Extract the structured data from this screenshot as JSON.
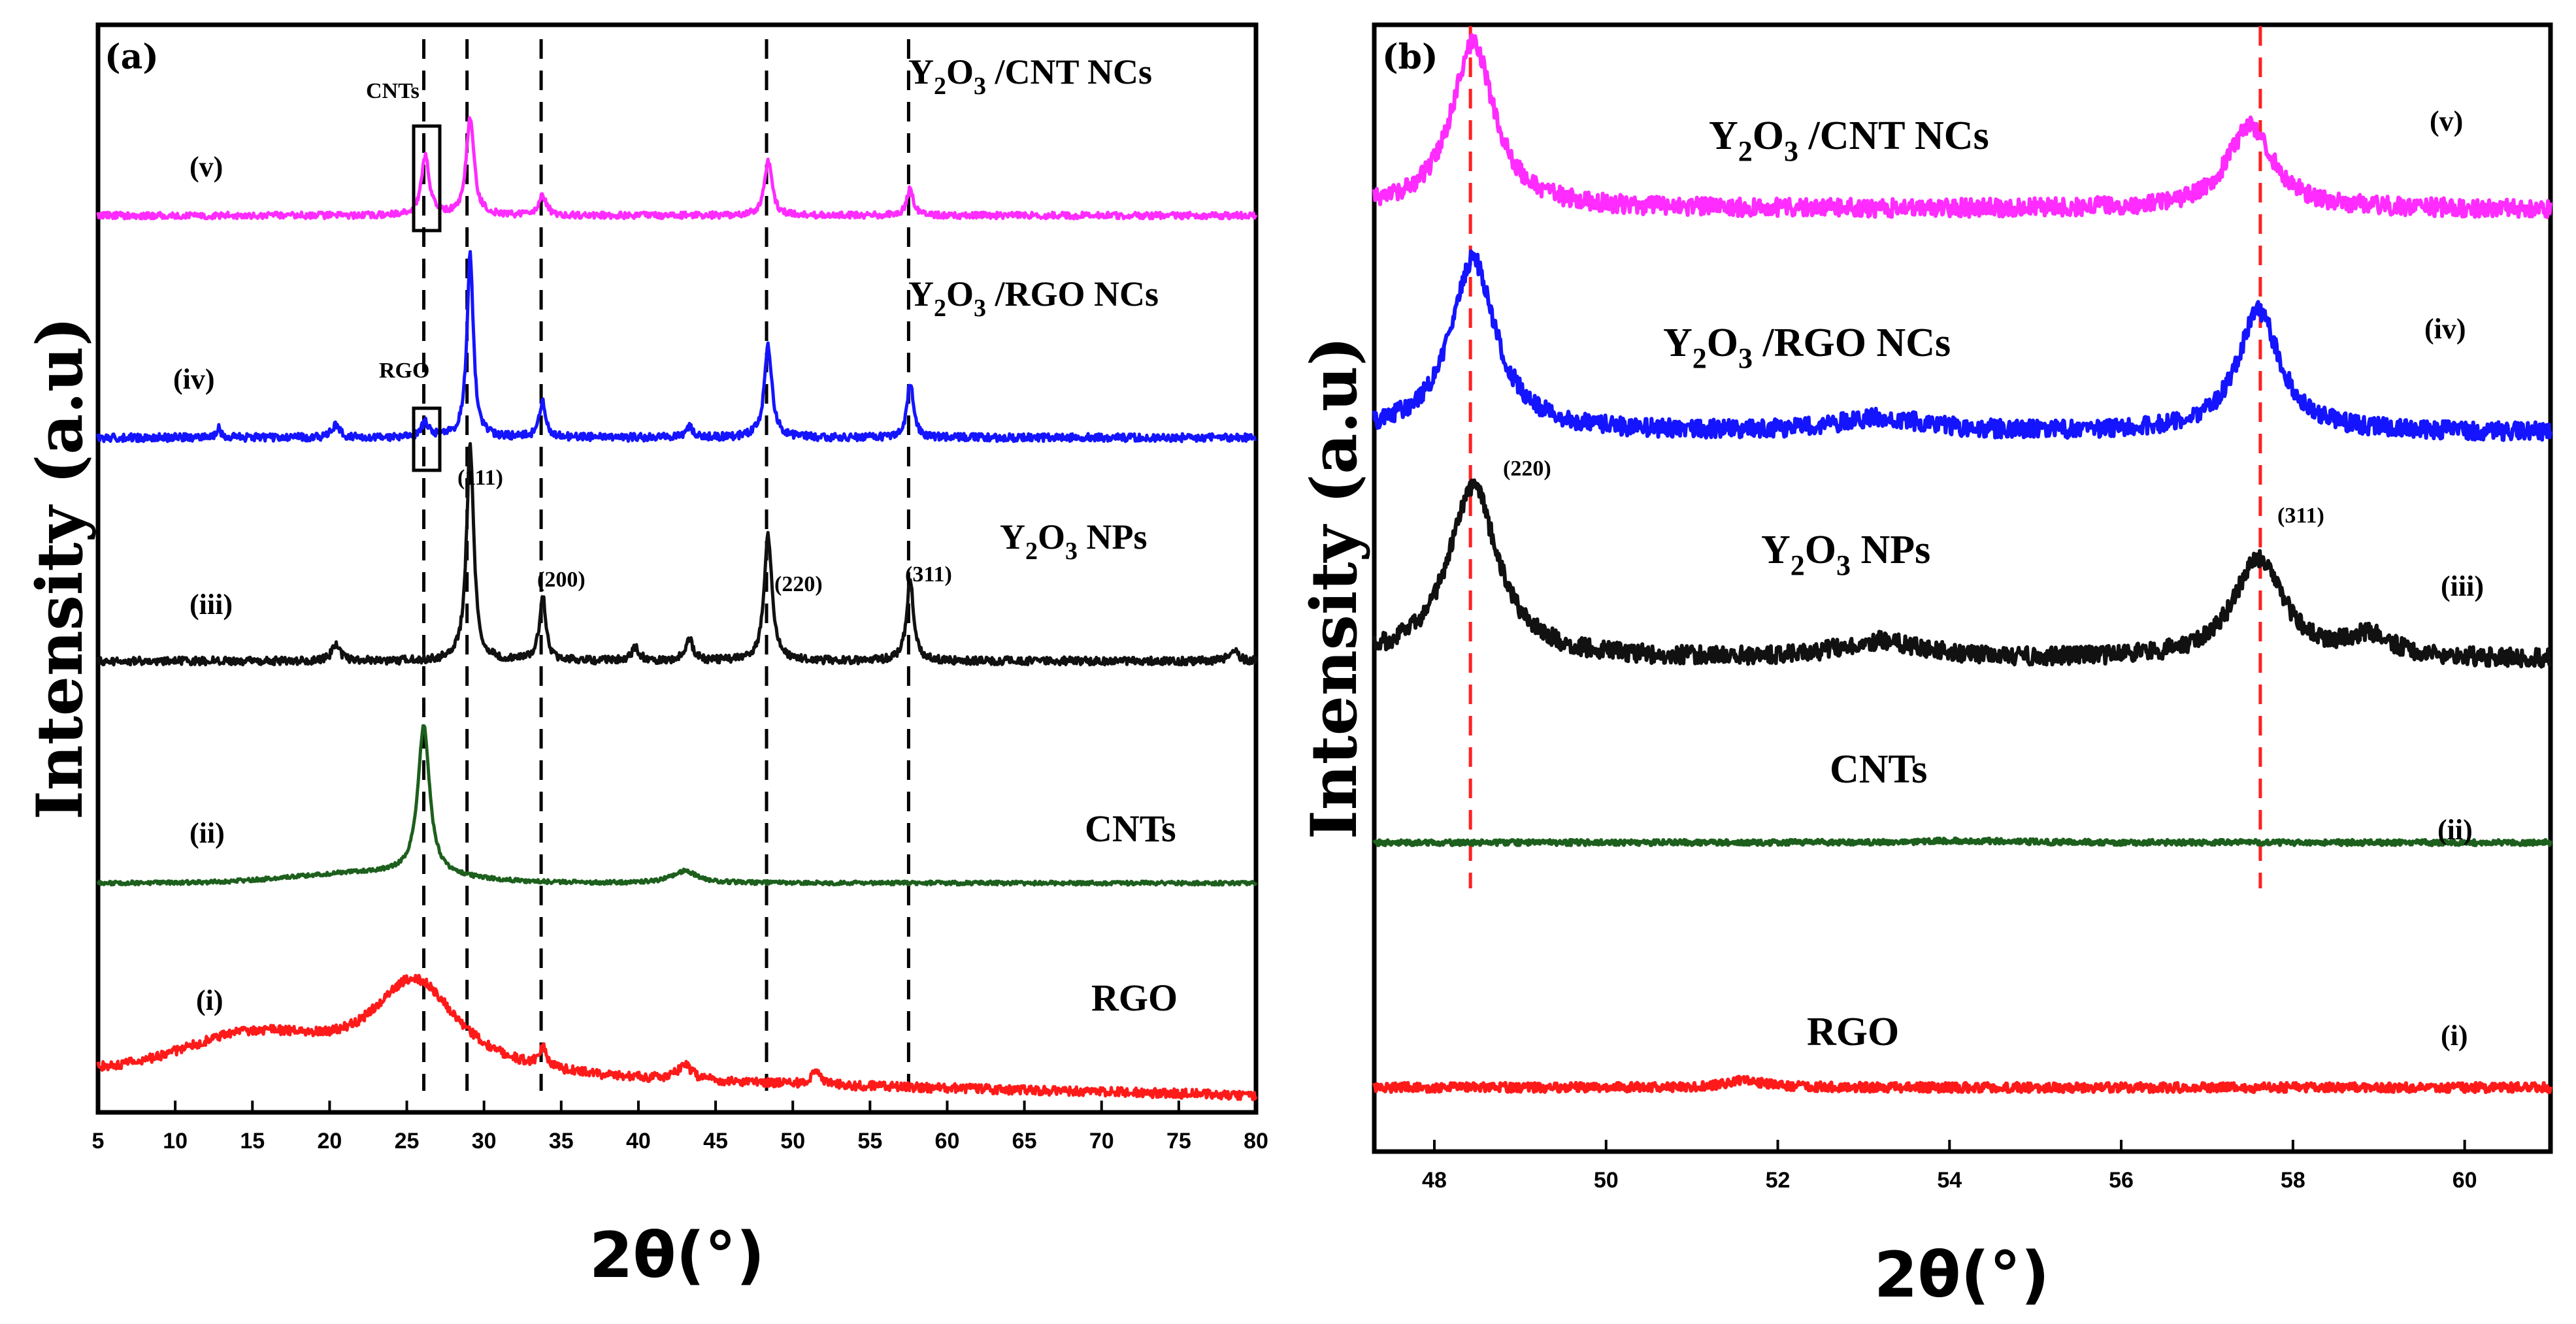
{
  "chart_data": [
    {
      "panel": "(a)",
      "type": "line",
      "xlabel": "2θ(°)",
      "ylabel": "Intensity (a.u)",
      "xlim": [
        5,
        80
      ],
      "xticks": [
        "5",
        "10",
        "15",
        "20",
        "25",
        "30",
        "35",
        "40",
        "45",
        "50",
        "55",
        "60",
        "65",
        "70",
        "75",
        "80"
      ],
      "y_ticks_shown": false,
      "series": [
        {
          "name": "RGO",
          "tag": "(i)",
          "color": "#ff1a1a",
          "peaks": [
            {
              "x": 25.5,
              "h": 1.0,
              "w": 3.5
            },
            {
              "x": 33.8,
              "h": 0.2,
              "w": 0.3
            },
            {
              "x": 43.0,
              "h": 0.15,
              "w": 0.6
            },
            {
              "x": 51.5,
              "h": 0.12,
              "w": 0.4
            }
          ]
        },
        {
          "name": "CNTs",
          "tag": "(ii)",
          "color": "#1d5f1d",
          "peaks": [
            {
              "x": 26.1,
              "h": 1.0,
              "w": 0.45
            },
            {
              "x": 43.0,
              "h": 0.08,
              "w": 1.0
            }
          ]
        },
        {
          "name": "Y2O3 NPs",
          "tag": "(iii)",
          "color": "#111111",
          "peaks": [
            {
              "x": 29.1,
              "h": 1.0,
              "w": 0.28
            },
            {
              "x": 33.8,
              "h": 0.3,
              "w": 0.25
            },
            {
              "x": 48.4,
              "h": 0.58,
              "w": 0.3
            },
            {
              "x": 57.6,
              "h": 0.37,
              "w": 0.28
            },
            {
              "x": 20.4,
              "h": 0.08,
              "w": 0.3
            },
            {
              "x": 43.3,
              "h": 0.1,
              "w": 0.3
            },
            {
              "x": 39.8,
              "h": 0.06,
              "w": 0.3
            },
            {
              "x": 78.5,
              "h": 0.06,
              "w": 0.3
            }
          ]
        },
        {
          "name": "Y2O3 /RGO NCs",
          "tag": "(iv)",
          "color": "#1414ff",
          "peaks": [
            {
              "x": 29.1,
              "h": 1.0,
              "w": 0.25
            },
            {
              "x": 33.8,
              "h": 0.2,
              "w": 0.25
            },
            {
              "x": 48.4,
              "h": 0.5,
              "w": 0.3
            },
            {
              "x": 57.6,
              "h": 0.3,
              "w": 0.25
            },
            {
              "x": 26.2,
              "h": 0.08,
              "w": 0.3
            },
            {
              "x": 20.4,
              "h": 0.07,
              "w": 0.3
            },
            {
              "x": 12.8,
              "h": 0.05,
              "w": 0.2
            },
            {
              "x": 43.3,
              "h": 0.06,
              "w": 0.3
            }
          ]
        },
        {
          "name": "Y2O3 /CNT NCs",
          "tag": "(v)",
          "color": "#ff2bff",
          "peaks": [
            {
              "x": 29.1,
              "h": 1.0,
              "w": 0.3
            },
            {
              "x": 26.2,
              "h": 0.6,
              "w": 0.3
            },
            {
              "x": 33.8,
              "h": 0.2,
              "w": 0.3
            },
            {
              "x": 48.4,
              "h": 0.55,
              "w": 0.3
            },
            {
              "x": 57.6,
              "h": 0.28,
              "w": 0.25
            }
          ]
        }
      ],
      "peak_labels": [
        "(111)",
        "(200)",
        "(220)",
        "(311)"
      ],
      "reference_lines": [
        26.1,
        28.9,
        33.7,
        48.3,
        57.5
      ],
      "box_labels": [
        "CNTs",
        "RGO"
      ]
    },
    {
      "panel": "(b)",
      "type": "line",
      "xlabel": "2θ(°)",
      "ylabel": "Intensity (a.u)",
      "xlim": [
        47.3,
        61.0
      ],
      "xticks": [
        "48",
        "50",
        "52",
        "54",
        "56",
        "58",
        "60"
      ],
      "y_ticks_shown": false,
      "series": [
        {
          "name": "RGO",
          "tag": "(i)",
          "color": "#ff1a1a",
          "peaks": [
            {
              "x": 51.6,
              "h": 0.1,
              "w": 0.3
            }
          ]
        },
        {
          "name": "CNTs",
          "tag": "(ii)",
          "color": "#1d5f1d",
          "peaks": [
            {
              "x": 54.2,
              "h": 0.05,
              "w": 0.6
            }
          ]
        },
        {
          "name": "Y2O3 NPs",
          "tag": "(iii)",
          "color": "#111111",
          "peaks": [
            {
              "x": 48.45,
              "h": 1.0,
              "w": 0.35
            },
            {
              "x": 57.6,
              "h": 0.58,
              "w": 0.35
            },
            {
              "x": 53.2,
              "h": 0.1,
              "w": 0.6
            },
            {
              "x": 58.9,
              "h": 0.12,
              "w": 0.3
            }
          ]
        },
        {
          "name": "Y2O3 /RGO NCs",
          "tag": "(iv)",
          "color": "#1414ff",
          "peaks": [
            {
              "x": 48.45,
              "h": 1.0,
              "w": 0.32
            },
            {
              "x": 57.6,
              "h": 0.7,
              "w": 0.3
            },
            {
              "x": 53.2,
              "h": 0.08,
              "w": 0.6
            }
          ]
        },
        {
          "name": "Y2O3 /CNT NCs",
          "tag": "(v)",
          "color": "#ff2bff",
          "peaks": [
            {
              "x": 48.45,
              "h": 1.0,
              "w": 0.3
            },
            {
              "x": 57.5,
              "h": 0.5,
              "w": 0.32
            }
          ]
        }
      ],
      "peak_labels": [
        "(220)",
        "(311)"
      ],
      "reference_lines": [
        48.42,
        57.62
      ]
    }
  ]
}
